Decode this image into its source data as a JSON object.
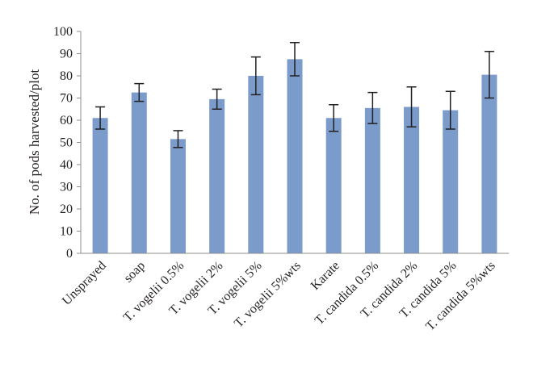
{
  "chart_data": {
    "type": "bar",
    "title": "",
    "xlabel": "",
    "ylabel": "No. of pods harvested/plot",
    "ylim": [
      0,
      100
    ],
    "yticks": [
      0,
      10,
      20,
      30,
      40,
      50,
      60,
      70,
      80,
      90,
      100
    ],
    "grid": false,
    "legend": "none",
    "bar_color": "#7b9bcb",
    "error_bar_color": "#231f20",
    "axis_color": "#8c8c8c",
    "categories": [
      "Unsprayed",
      "soap",
      "T. vogelii 0.5%",
      "T. vogelii 2%",
      "T. vogelii 5%",
      "T. vogelii 5%wts",
      "Karate",
      "T. candida 0.5%",
      "T. candida 2%",
      "T. candida 5%",
      "T. candida 5%wts"
    ],
    "values": [
      61,
      72.5,
      51.5,
      69.5,
      80,
      87.5,
      61,
      65.5,
      66,
      64.5,
      80.5
    ],
    "errors": [
      5,
      4,
      3.8,
      4.5,
      8.5,
      7.5,
      6,
      7,
      9,
      8.5,
      10.5
    ]
  }
}
